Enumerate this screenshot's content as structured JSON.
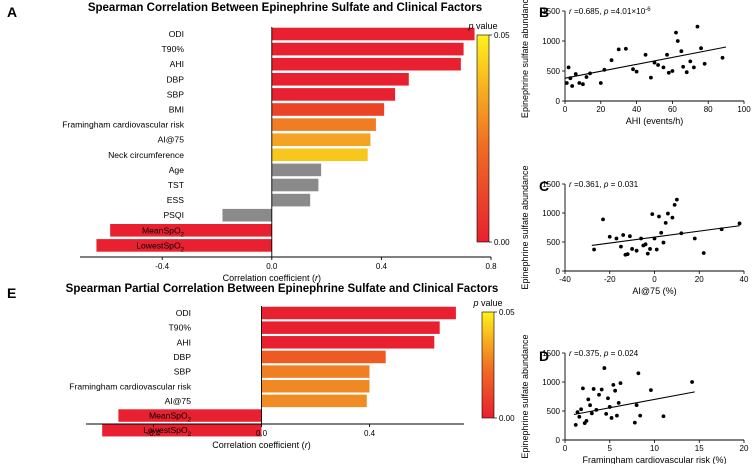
{
  "chart_data": [
    {
      "panel": "A",
      "type": "bar",
      "orientation": "horizontal",
      "title": "Spearman Correlation Between Epinephrine Sulfate and Clinical Factors",
      "xlabel": "Correlation coefficient (r)",
      "xlim": [
        -0.7,
        0.8
      ],
      "xticks": [
        -0.4,
        0.0,
        0.4,
        0.8
      ],
      "xtick_labels": [
        "-0.4",
        "0.0",
        "0.4",
        "0.8"
      ],
      "categories": [
        "ODI",
        "T90%",
        "AHI",
        "DBP",
        "SBP",
        "BMI",
        "Framingham cardiovascular risk",
        "AI@75",
        "Neck circumference",
        "Age",
        "TST",
        "ESS",
        "PSQI",
        "MeanSpO2",
        "LowestSpO2"
      ],
      "category_labels": [
        {
          "main": "ODI"
        },
        {
          "main": "T90%"
        },
        {
          "main": "AHI"
        },
        {
          "main": "DBP"
        },
        {
          "main": "SBP"
        },
        {
          "main": "BMI"
        },
        {
          "main": "Framingham cardiovascular risk"
        },
        {
          "main": "AI@75"
        },
        {
          "main": "Neck circumference"
        },
        {
          "main": "Age"
        },
        {
          "main": "TST"
        },
        {
          "main": "ESS"
        },
        {
          "main": "PSQI"
        },
        {
          "main": "MeanSpO",
          "sub": "2"
        },
        {
          "main": "LowestSpO",
          "sub": "2"
        }
      ],
      "values": [
        0.74,
        0.7,
        0.69,
        0.5,
        0.45,
        0.41,
        0.38,
        0.36,
        0.35,
        0.18,
        0.17,
        0.14,
        -0.18,
        -0.59,
        -0.64
      ],
      "bar_colors": [
        "#e8202f",
        "#e8202f",
        "#e8202f",
        "#e8202f",
        "#e8202f",
        "#ea4326",
        "#ef7d24",
        "#f4a323",
        "#f8c71e",
        "#8a8a8a",
        "#8a8a8a",
        "#8a8a8a",
        "#8a8a8a",
        "#e8202f",
        "#e8202f"
      ],
      "colorbar": {
        "title_italic": "p",
        "title_rest": " value",
        "min_label": "0.00",
        "max_label": "0.05"
      }
    },
    {
      "panel": "B",
      "type": "scatter",
      "stat_r": "r",
      "stat_r_value": " =0.685, ",
      "stat_p": "p",
      "stat_p_value": " =4.01×10",
      "stat_p_exp": "-6",
      "xlabel": "AHI (events/h)",
      "ylabel": "Epinephrine sulfate abundance",
      "xlim": [
        0,
        100
      ],
      "ylim": [
        0,
        1500
      ],
      "xticks": [
        0,
        20,
        40,
        60,
        80,
        100
      ],
      "yticks": [
        0,
        500,
        1000,
        1500
      ],
      "x": [
        1,
        2,
        3,
        4,
        6,
        8,
        10,
        12,
        14,
        20,
        22,
        26,
        30,
        34,
        38,
        40,
        45,
        48,
        50,
        52,
        55,
        57,
        58,
        60,
        62,
        63,
        65,
        66,
        68,
        70,
        72,
        74,
        76,
        78,
        88
      ],
      "y": [
        300,
        560,
        380,
        250,
        450,
        300,
        280,
        400,
        460,
        300,
        520,
        680,
        860,
        870,
        530,
        490,
        770,
        390,
        640,
        600,
        560,
        770,
        470,
        500,
        1140,
        1000,
        830,
        570,
        480,
        660,
        560,
        1240,
        880,
        620,
        720
      ],
      "fit": {
        "x": [
          0,
          90
        ],
        "y": [
          380,
          900
        ]
      }
    },
    {
      "panel": "C",
      "type": "scatter",
      "stat_r": "r",
      "stat_r_value": " =0.361, ",
      "stat_p": "p",
      "stat_p_value": " = 0.031",
      "stat_p_exp": "",
      "xlabel": "AI@75 (%)",
      "ylabel": "Epinephrine sulfate abundance",
      "xlim": [
        -40,
        40
      ],
      "ylim": [
        0,
        1500
      ],
      "xticks": [
        -40,
        -20,
        0,
        20,
        40
      ],
      "yticks": [
        0,
        500,
        1000,
        1500
      ],
      "x": [
        -27,
        -23,
        -20,
        -17,
        -15,
        -14,
        -13,
        -12,
        -11,
        -10,
        -8,
        -6,
        -5,
        -4,
        -3,
        -2,
        -1,
        0,
        1,
        2,
        3,
        4,
        5,
        6,
        8,
        9,
        10,
        12,
        18,
        22,
        30,
        38
      ],
      "y": [
        370,
        890,
        590,
        560,
        420,
        620,
        280,
        290,
        600,
        380,
        350,
        560,
        440,
        460,
        300,
        380,
        980,
        560,
        370,
        940,
        660,
        490,
        830,
        990,
        920,
        1140,
        1230,
        650,
        560,
        310,
        720,
        820
      ],
      "fit": {
        "x": [
          -28,
          38
        ],
        "y": [
          440,
          780
        ]
      }
    },
    {
      "panel": "D",
      "type": "scatter",
      "stat_r": "r",
      "stat_r_value": " =0.375, ",
      "stat_p": "p",
      "stat_p_value": " = 0.024",
      "stat_p_exp": "",
      "xlabel": "Framingham cardiovascular risk (%)",
      "ylabel": "Epinephrine sulfate abundance",
      "xlim": [
        0,
        20
      ],
      "ylim": [
        0,
        1500
      ],
      "xticks": [
        0,
        5,
        10,
        15,
        20
      ],
      "yticks": [
        0,
        500,
        1000,
        1500
      ],
      "x": [
        1.2,
        1.4,
        1.6,
        1.8,
        2.0,
        2.2,
        2.4,
        2.6,
        2.8,
        3.0,
        3.2,
        3.5,
        3.8,
        4.1,
        4.4,
        4.6,
        4.8,
        5.0,
        5.2,
        5.4,
        5.6,
        5.8,
        6.0,
        6.2,
        7.8,
        8.0,
        8.2,
        8.4,
        9.6,
        11.0,
        14.2
      ],
      "y": [
        260,
        480,
        400,
        530,
        890,
        290,
        330,
        700,
        600,
        460,
        880,
        520,
        780,
        870,
        1240,
        450,
        720,
        570,
        380,
        950,
        850,
        420,
        640,
        980,
        300,
        600,
        1150,
        420,
        860,
        410,
        1000
      ],
      "fit": {
        "x": [
          1,
          14.5
        ],
        "y": [
          440,
          830
        ]
      }
    },
    {
      "panel": "E",
      "type": "bar",
      "orientation": "horizontal",
      "title": "Spearman Partial Correlation Between Epinephrine Sulfate and Clinical Factors",
      "xlabel": "Correlation coefficient (r)",
      "xlim": [
        -0.65,
        0.75
      ],
      "xticks": [
        -0.4,
        0.0,
        0.4
      ],
      "xtick_labels": [
        "-0.4",
        "0.0",
        "0.4"
      ],
      "categories": [
        "ODI",
        "T90%",
        "AHI",
        "DBP",
        "SBP",
        "Framingham cardiovascular risk",
        "AI@75",
        "MeanSpO2",
        "LowestSpO2"
      ],
      "category_labels": [
        {
          "main": "ODI"
        },
        {
          "main": "T90%"
        },
        {
          "main": "AHI"
        },
        {
          "main": "DBP"
        },
        {
          "main": "SBP"
        },
        {
          "main": "Framingham cardiovascular risk"
        },
        {
          "main": "AI@75"
        },
        {
          "main": "MeanSpO",
          "sub": "2"
        },
        {
          "main": "LowestSpO",
          "sub": "2"
        }
      ],
      "values": [
        0.72,
        0.66,
        0.64,
        0.46,
        0.4,
        0.4,
        0.39,
        -0.53,
        -0.59
      ],
      "bar_colors": [
        "#e8202f",
        "#e8202f",
        "#e8202f",
        "#ed5a24",
        "#f07f24",
        "#f08824",
        "#f08c24",
        "#e8202f",
        "#e8202f"
      ],
      "colorbar": {
        "title_italic": "p",
        "title_rest": " value",
        "min_label": "0.00",
        "max_label": "0.05"
      }
    }
  ],
  "panel_letters": [
    "A",
    "B",
    "C",
    "D",
    "E"
  ],
  "colors": {
    "significant": "#e8202f",
    "nonsignificant": "#8a8a8a",
    "cbar_low": "#e8202f",
    "cbar_high": "#fff21a"
  }
}
